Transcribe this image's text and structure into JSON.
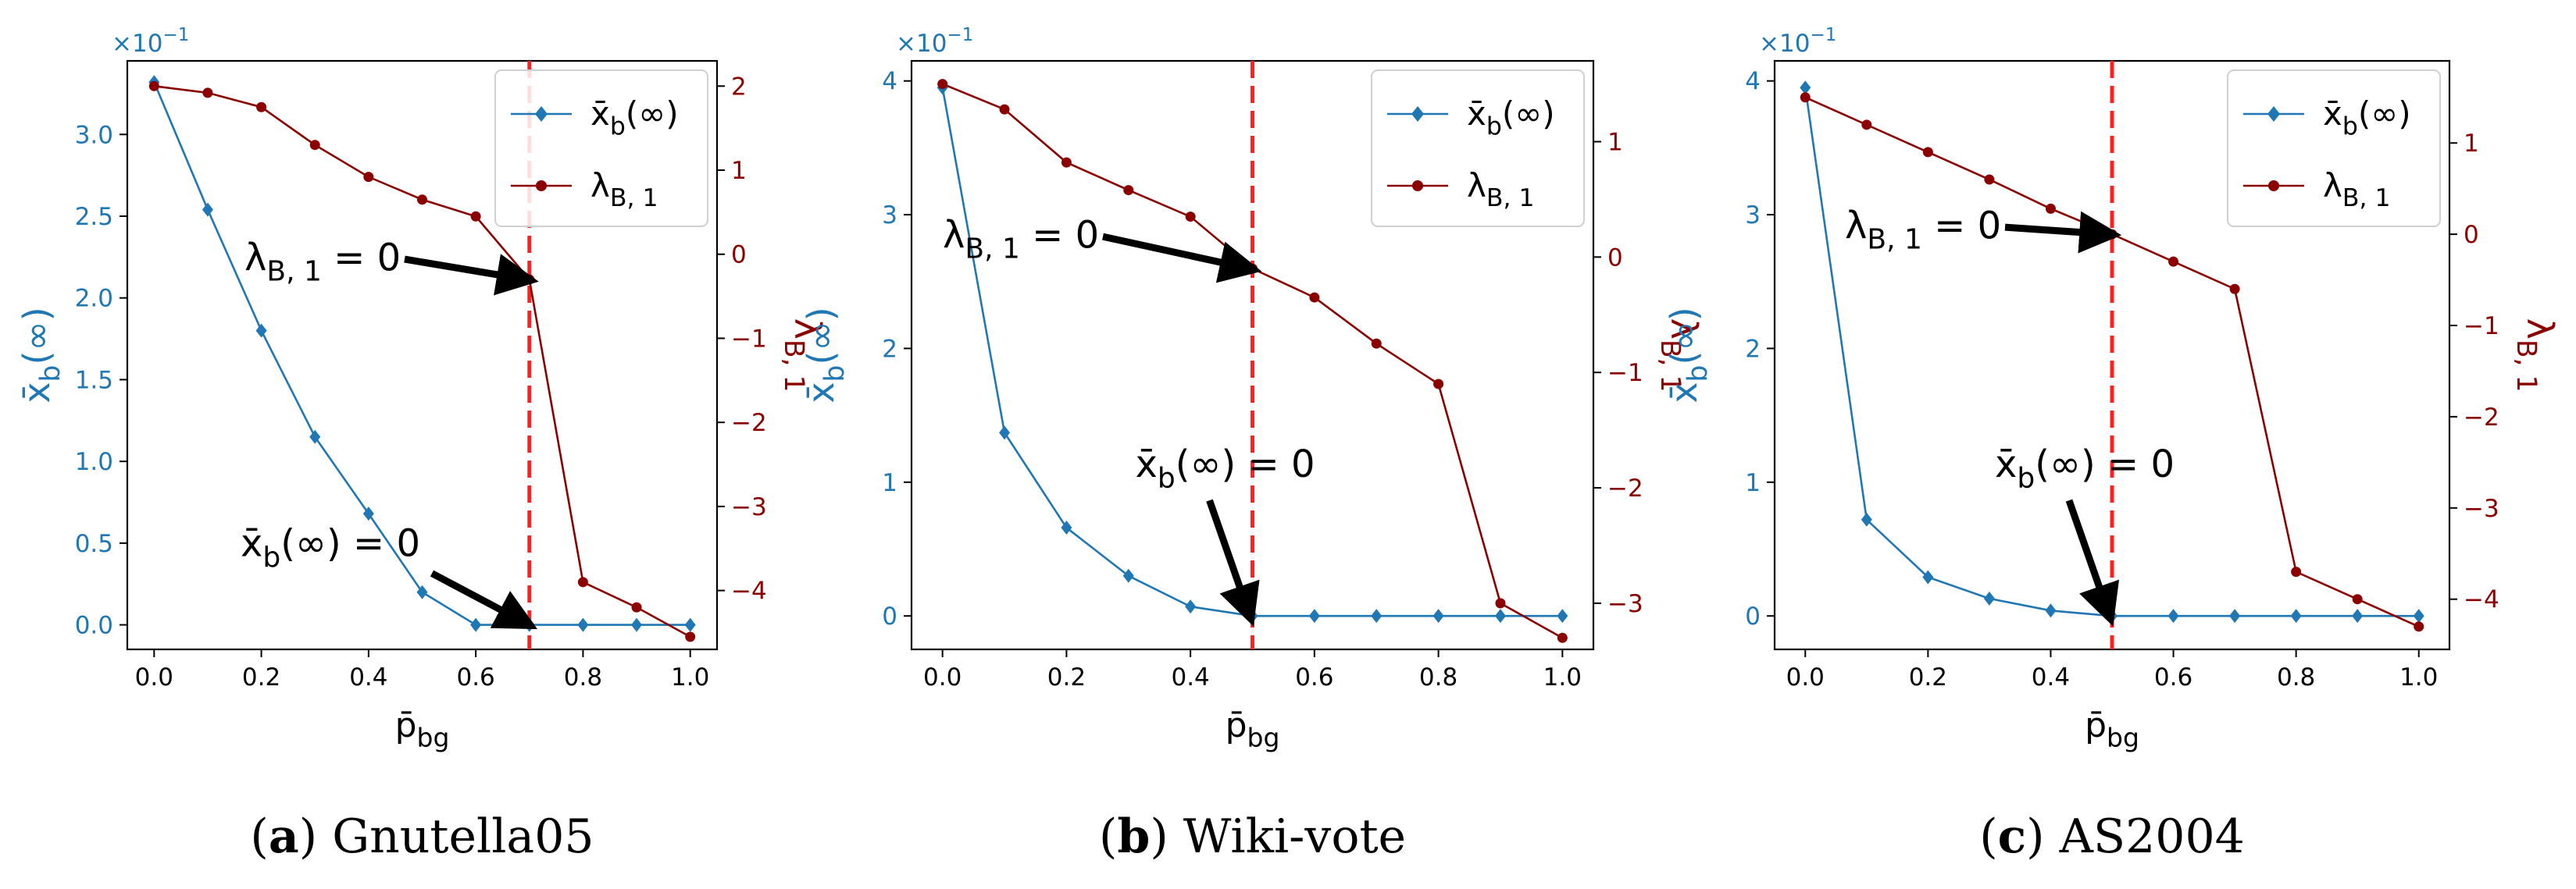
{
  "colors": {
    "blue": "#1f77b4",
    "red": "#8b0000",
    "vline": "#ff2020",
    "arrow": "#000000",
    "axis": "#000000"
  },
  "chart_data": [
    {
      "type": "line",
      "panel_letter": "a",
      "caption": "Gnutella05",
      "xlabel": "p̄bg",
      "ylabel_left": "x̄b(∞)",
      "ylabel_right": "λB,1",
      "exponent_label": "×10−1",
      "xlim": [
        -0.05,
        1.05
      ],
      "ylim_left": [
        -0.15,
        3.45
      ],
      "ylim_right": [
        -4.7,
        2.3
      ],
      "x_ticks": [
        "0.0",
        "0.2",
        "0.4",
        "0.6",
        "0.8",
        "1.0"
      ],
      "y_left_ticks": [
        "0.0",
        "0.5",
        "1.0",
        "1.5",
        "2.0",
        "2.5",
        "3.0"
      ],
      "y_right_ticks": [
        "−4",
        "−3",
        "−2",
        "−1",
        "0",
        "1",
        "2"
      ],
      "vline_x": 0.7,
      "legend_position": "top-right",
      "series": [
        {
          "name": "x̄b(∞)",
          "axis": "left",
          "marker": "diamond",
          "x": [
            0,
            0.1,
            0.2,
            0.3,
            0.4,
            0.5,
            0.6,
            0.7,
            0.8,
            0.9,
            1.0
          ],
          "values": [
            3.32,
            2.54,
            1.8,
            1.15,
            0.68,
            0.2,
            0.0,
            0.0,
            0.0,
            0.0,
            0.0
          ]
        },
        {
          "name": "λB,1",
          "axis": "right",
          "marker": "circle",
          "x": [
            0,
            0.1,
            0.2,
            0.3,
            0.4,
            0.5,
            0.6,
            0.7,
            0.8,
            0.9,
            1.0
          ],
          "values": [
            2.0,
            1.92,
            1.75,
            1.3,
            0.92,
            0.65,
            0.45,
            -0.3,
            -3.9,
            -4.2,
            -4.55
          ]
        }
      ],
      "annotations": [
        {
          "text": "λB,1 = 0",
          "x": 0.7,
          "y": -0.3,
          "axis": "right"
        },
        {
          "text": "x̄b(∞) = 0",
          "x": 0.7,
          "y": 0.0,
          "axis": "left"
        }
      ]
    },
    {
      "type": "line",
      "panel_letter": "b",
      "caption": "Wiki-vote",
      "xlabel": "p̄bg",
      "ylabel_left": "x̄b(∞)",
      "ylabel_right": "λB,1",
      "exponent_label": "×10−1",
      "xlim": [
        -0.05,
        1.05
      ],
      "ylim_left": [
        -0.25,
        4.15
      ],
      "ylim_right": [
        -3.4,
        1.7
      ],
      "x_ticks": [
        "0.0",
        "0.2",
        "0.4",
        "0.6",
        "0.8",
        "1.0"
      ],
      "y_left_ticks": [
        "0",
        "1",
        "2",
        "3",
        "4"
      ],
      "y_right_ticks": [
        "−3",
        "−2",
        "−1",
        "0",
        "1"
      ],
      "vline_x": 0.5,
      "legend_position": "top-right",
      "series": [
        {
          "name": "x̄b(∞)",
          "axis": "left",
          "marker": "diamond",
          "x": [
            0,
            0.1,
            0.2,
            0.3,
            0.4,
            0.5,
            0.6,
            0.7,
            0.8,
            0.9,
            1.0
          ],
          "values": [
            3.95,
            1.37,
            0.66,
            0.3,
            0.07,
            0.0,
            0.0,
            0.0,
            0.0,
            0.0,
            0.0
          ]
        },
        {
          "name": "λB,1",
          "axis": "right",
          "marker": "circle",
          "x": [
            0,
            0.1,
            0.2,
            0.3,
            0.4,
            0.5,
            0.6,
            0.7,
            0.8,
            0.9,
            1.0
          ],
          "values": [
            1.5,
            1.28,
            0.82,
            0.58,
            0.35,
            -0.1,
            -0.35,
            -0.75,
            -1.1,
            -3.0,
            -3.3
          ]
        }
      ],
      "annotations": [
        {
          "text": "λB,1 = 0",
          "x": 0.5,
          "y": -0.1,
          "axis": "right"
        },
        {
          "text": "x̄b(∞) = 0",
          "x": 0.5,
          "y": 0.0,
          "axis": "left"
        }
      ]
    },
    {
      "type": "line",
      "panel_letter": "c",
      "caption": "AS2004",
      "xlabel": "p̄bg",
      "ylabel_left": "x̄b(∞)",
      "ylabel_right": "λB,1",
      "exponent_label": "×10−1",
      "xlim": [
        -0.05,
        1.05
      ],
      "ylim_left": [
        -0.25,
        4.15
      ],
      "ylim_right": [
        -4.55,
        1.9
      ],
      "x_ticks": [
        "0.0",
        "0.2",
        "0.4",
        "0.6",
        "0.8",
        "1.0"
      ],
      "y_left_ticks": [
        "0",
        "1",
        "2",
        "3",
        "4"
      ],
      "y_right_ticks": [
        "−4",
        "−3",
        "−2",
        "−1",
        "0",
        "1"
      ],
      "vline_x": 0.5,
      "legend_position": "top-right",
      "series": [
        {
          "name": "x̄b(∞)",
          "axis": "left",
          "marker": "diamond",
          "x": [
            0,
            0.1,
            0.2,
            0.3,
            0.4,
            0.5,
            0.6,
            0.7,
            0.8,
            0.9,
            1.0
          ],
          "values": [
            3.95,
            0.72,
            0.29,
            0.13,
            0.04,
            0.0,
            0.0,
            0.0,
            0.0,
            0.0,
            0.0
          ]
        },
        {
          "name": "λB,1",
          "axis": "right",
          "marker": "circle",
          "x": [
            0,
            0.1,
            0.2,
            0.3,
            0.4,
            0.5,
            0.6,
            0.7,
            0.8,
            0.9,
            1.0
          ],
          "values": [
            1.5,
            1.2,
            0.9,
            0.6,
            0.28,
            0.0,
            -0.3,
            -0.6,
            -3.7,
            -4.0,
            -4.3
          ]
        }
      ],
      "annotations": [
        {
          "text": "λB,1 = 0",
          "x": 0.5,
          "y": 0.0,
          "axis": "right"
        },
        {
          "text": "x̄b(∞) = 0",
          "x": 0.5,
          "y": 0.0,
          "axis": "left"
        }
      ]
    }
  ]
}
